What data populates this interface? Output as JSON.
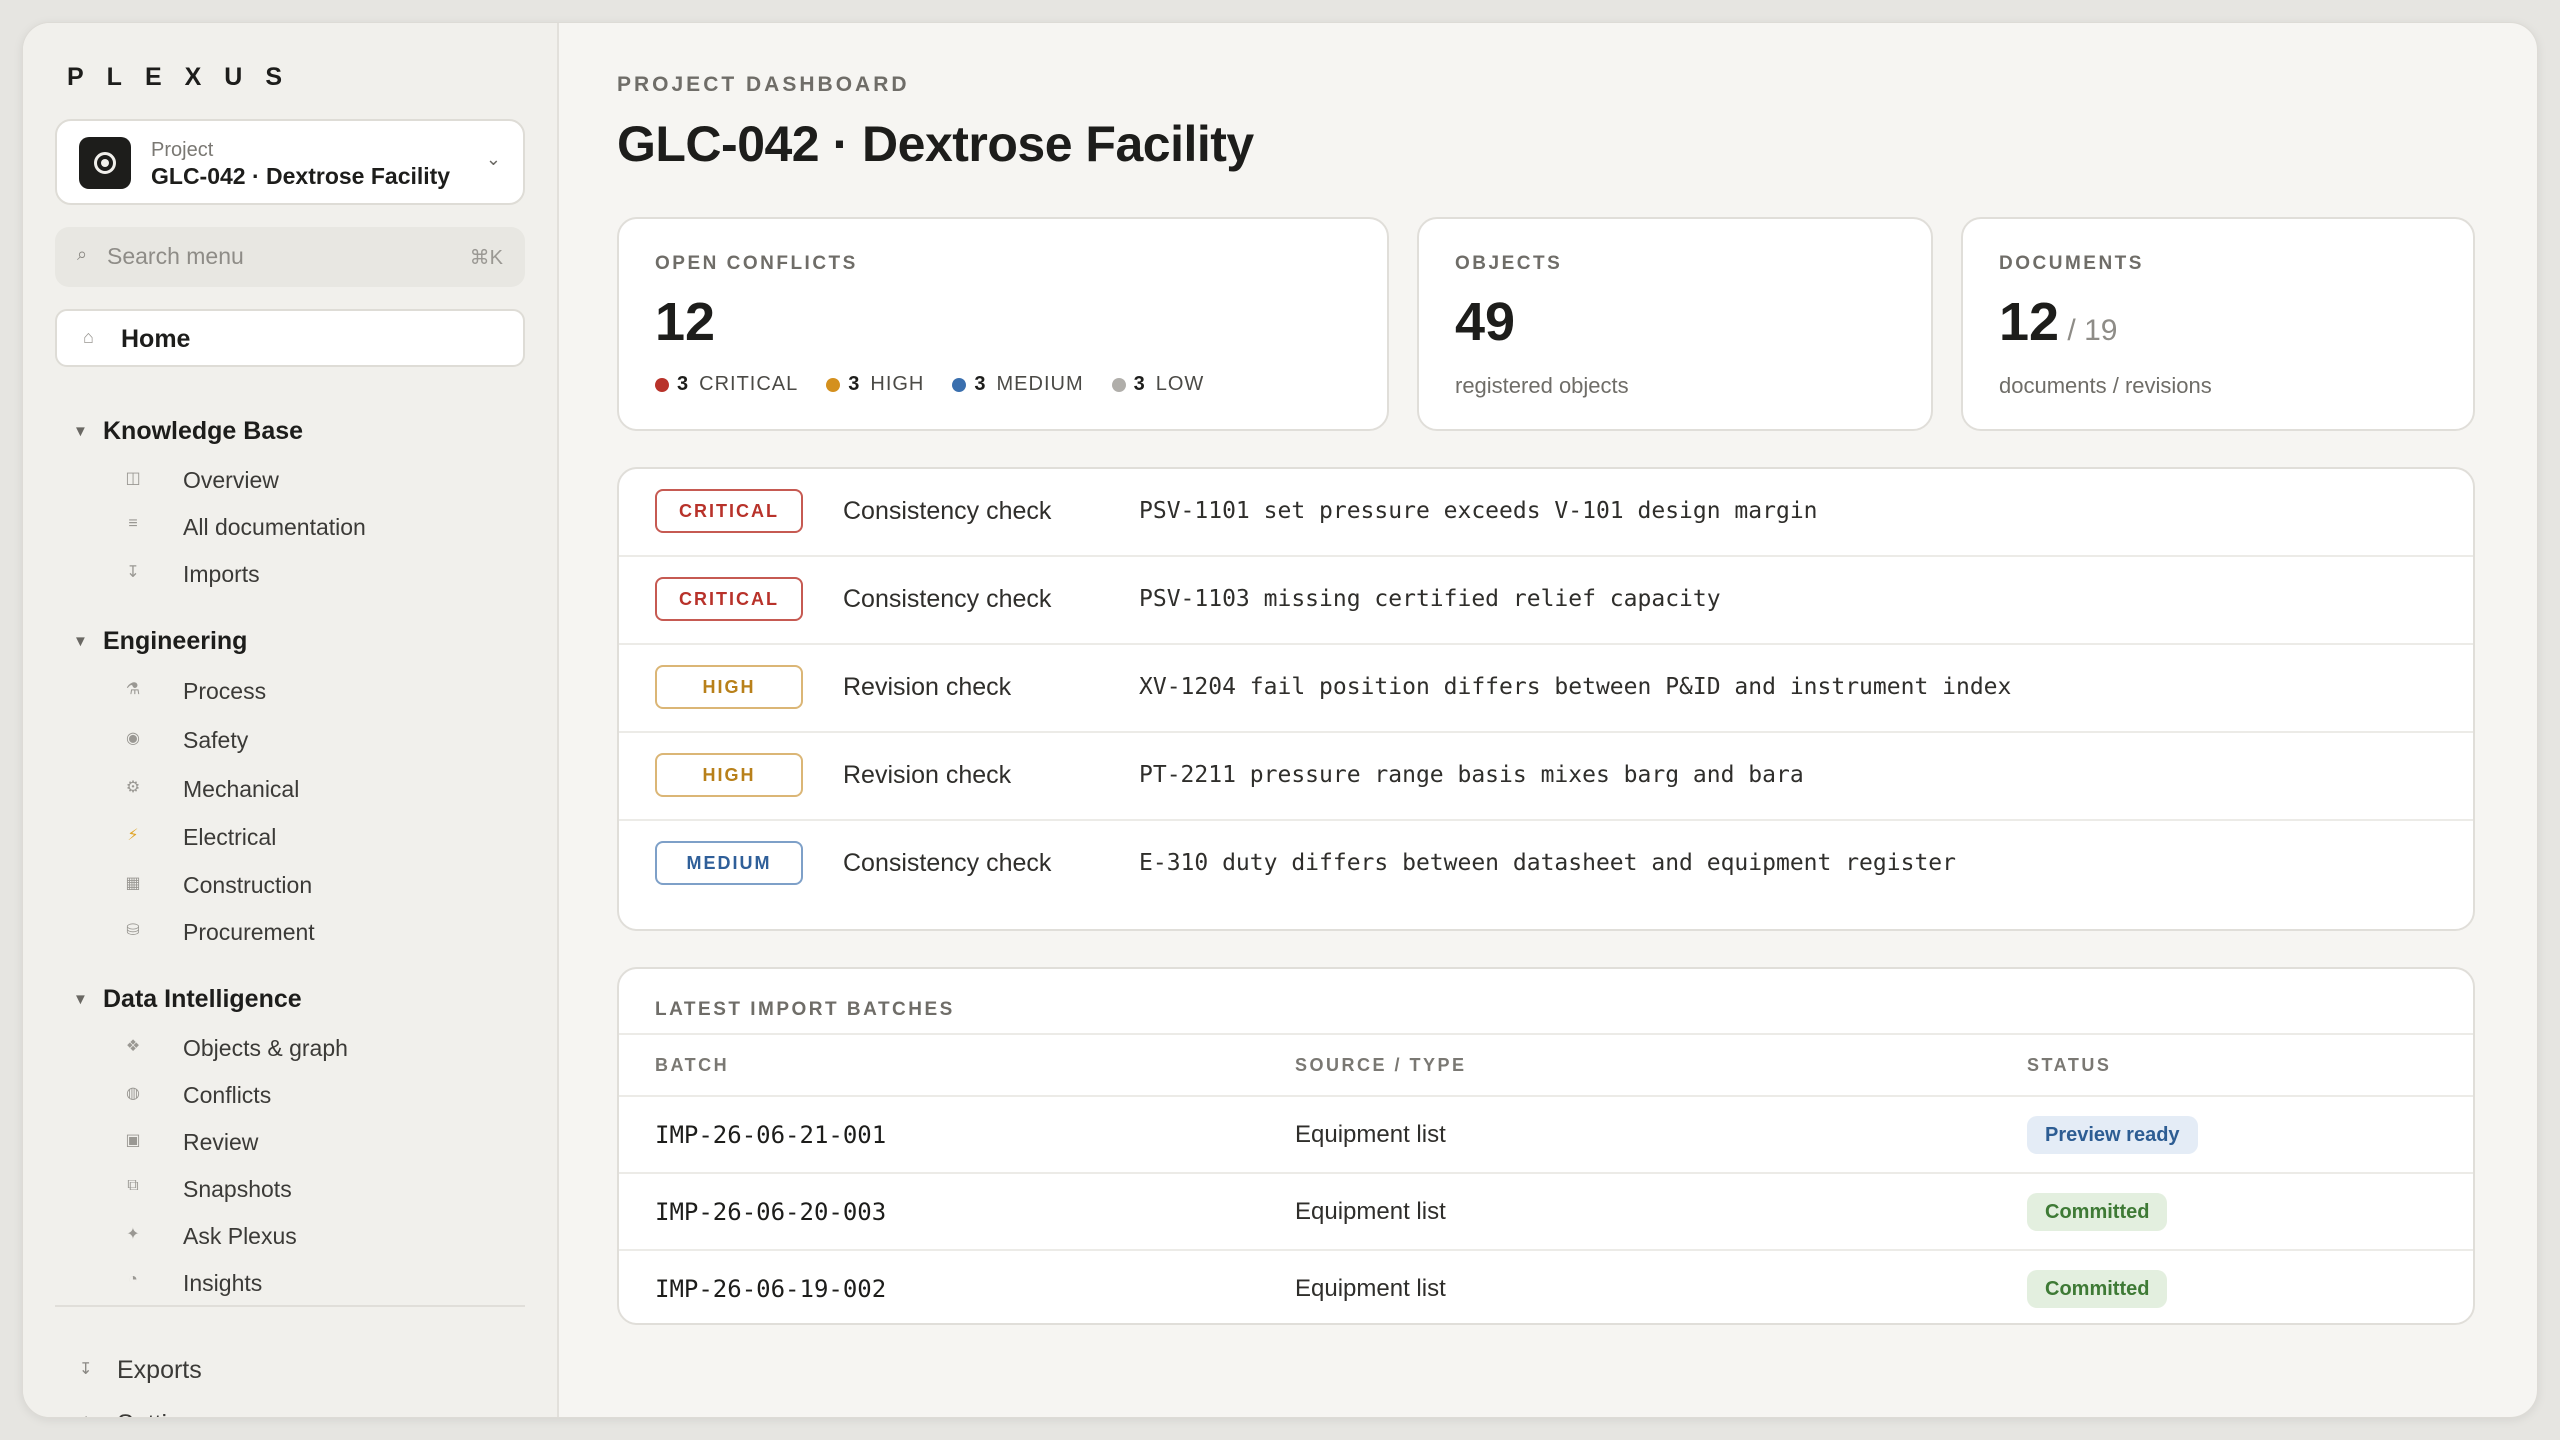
{
  "app": {
    "logo": "PLEXUS"
  },
  "project": {
    "label": "Project",
    "name": "GLC-042 · Dextrose Facility"
  },
  "search": {
    "placeholder": "Search menu",
    "shortcut": "⌘K"
  },
  "nav": {
    "home": "Home",
    "sections": [
      {
        "title": "Knowledge Base",
        "items": [
          {
            "label": "Overview",
            "icon": "columns-icon"
          },
          {
            "label": "All documentation",
            "icon": "list-icon"
          },
          {
            "label": "Imports",
            "icon": "import-icon"
          }
        ]
      },
      {
        "title": "Engineering",
        "items": [
          {
            "label": "Process",
            "icon": "flask-icon"
          },
          {
            "label": "Safety",
            "icon": "shield-icon"
          },
          {
            "label": "Mechanical",
            "icon": "gear-icon"
          },
          {
            "label": "Electrical",
            "icon": "bolt-icon"
          },
          {
            "label": "Construction",
            "icon": "block-icon"
          },
          {
            "label": "Procurement",
            "icon": "box-icon"
          }
        ]
      },
      {
        "title": "Data Intelligence",
        "items": [
          {
            "label": "Objects & graph",
            "icon": "graph-icon"
          },
          {
            "label": "Conflicts",
            "icon": "conflict-icon"
          },
          {
            "label": "Review",
            "icon": "review-icon"
          },
          {
            "label": "Snapshots",
            "icon": "snapshot-icon"
          },
          {
            "label": "Ask Plexus",
            "icon": "sparkle-icon"
          },
          {
            "label": "Insights",
            "icon": "pie-icon"
          }
        ]
      }
    ],
    "bottom": [
      {
        "label": "Exports",
        "icon": "export-icon"
      },
      {
        "label": "Settings",
        "icon": "gear-icon"
      }
    ]
  },
  "page": {
    "eyebrow": "PROJECT DASHBOARD",
    "title": "GLC-042 · Dextrose Facility"
  },
  "stats": {
    "conflicts": {
      "label": "OPEN CONFLICTS",
      "value": "12",
      "breakdown": [
        {
          "count": "3",
          "level": "CRITICAL",
          "color": "#b8322a"
        },
        {
          "count": "3",
          "level": "HIGH",
          "color": "#d4901e"
        },
        {
          "count": "3",
          "level": "MEDIUM",
          "color": "#3a6fae"
        },
        {
          "count": "3",
          "level": "LOW",
          "color": "#b0aeaa"
        }
      ]
    },
    "objects": {
      "label": "OBJECTS",
      "value": "49",
      "caption": "registered objects"
    },
    "documents": {
      "label": "DOCUMENTS",
      "value": "12",
      "sub": " / 19",
      "caption": "documents / revisions"
    }
  },
  "conflicts": [
    {
      "severity": "CRITICAL",
      "check": "Consistency check",
      "message": "PSV-1101 set pressure exceeds V-101 design margin"
    },
    {
      "severity": "CRITICAL",
      "check": "Consistency check",
      "message": "PSV-1103 missing certified relief capacity"
    },
    {
      "severity": "HIGH",
      "check": "Revision check",
      "message": "XV-1204 fail position differs between P&ID and instrument index"
    },
    {
      "severity": "HIGH",
      "check": "Revision check",
      "message": "PT-2211 pressure range basis mixes barg and bara"
    },
    {
      "severity": "MEDIUM",
      "check": "Consistency check",
      "message": "E-310 duty differs between datasheet and equipment register"
    }
  ],
  "severity_colors": {
    "CRITICAL": {
      "text": "#b8322a",
      "border": "#c65a52"
    },
    "HIGH": {
      "text": "#b8801a",
      "border": "#dbb676"
    },
    "MEDIUM": {
      "text": "#2f5f99",
      "border": "#7ea0c8"
    }
  },
  "imports": {
    "title": "LATEST IMPORT BATCHES",
    "columns": [
      "BATCH",
      "SOURCE / TYPE",
      "STATUS"
    ],
    "rows": [
      {
        "batch": "IMP-26-06-21-001",
        "source": "Equipment list",
        "status": "Preview ready",
        "status_kind": "preview"
      },
      {
        "batch": "IMP-26-06-20-003",
        "source": "Equipment list",
        "status": "Committed",
        "status_kind": "committed"
      },
      {
        "batch": "IMP-26-06-19-002",
        "source": "Equipment list",
        "status": "Committed",
        "status_kind": "committed"
      }
    ]
  },
  "status_colors": {
    "preview": {
      "bg": "#e4ecf6",
      "text": "#2d5d93"
    },
    "committed": {
      "bg": "#e3efdf",
      "text": "#3e7a35"
    }
  }
}
